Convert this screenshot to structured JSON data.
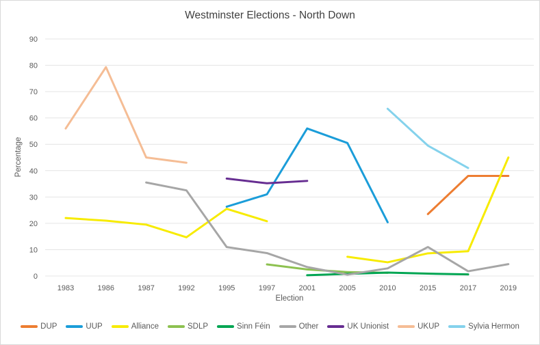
{
  "chart": {
    "title": "Westminster Elections - North Down",
    "x_axis_title": "Election",
    "y_axis_title": "Percentage"
  },
  "chart_data": {
    "type": "line",
    "title": "Westminster Elections - North Down",
    "xlabel": "Election",
    "ylabel": "Percentage",
    "ylim": [
      0,
      90
    ],
    "y_ticks": [
      0,
      10,
      20,
      30,
      40,
      50,
      60,
      70,
      80,
      90
    ],
    "grid": "horizontal",
    "legend_position": "bottom",
    "categories": [
      "1983",
      "1986",
      "1987",
      "1992",
      "1995",
      "1997",
      "2001",
      "2005",
      "2010",
      "2015",
      "2017",
      "2019"
    ],
    "series": [
      {
        "name": "DUP",
        "color": "#ED7D31",
        "values": [
          null,
          null,
          null,
          null,
          null,
          null,
          null,
          null,
          null,
          23.5,
          38,
          38
        ]
      },
      {
        "name": "UUP",
        "color": "#1B9DD9",
        "values": [
          null,
          null,
          null,
          null,
          26.3,
          31,
          56,
          50.5,
          20.4,
          null,
          null,
          null
        ]
      },
      {
        "name": "Alliance",
        "color": "#F7EB00",
        "values": [
          22,
          21,
          19.5,
          14.7,
          25.5,
          20.8,
          null,
          7.3,
          5.2,
          8.6,
          9.4,
          45
        ]
      },
      {
        "name": "SDLP",
        "color": "#8DC150",
        "values": [
          null,
          null,
          null,
          null,
          null,
          4.4,
          2.5,
          1.5,
          1.2,
          null,
          null,
          null
        ]
      },
      {
        "name": "Sinn Féin",
        "color": "#00A552",
        "values": [
          null,
          null,
          null,
          null,
          null,
          null,
          0.3,
          0.8,
          1.3,
          0.9,
          0.6,
          null
        ]
      },
      {
        "name": "Other",
        "color": "#A6A6A6",
        "values": [
          null,
          null,
          35.5,
          32.5,
          11,
          8.7,
          3.4,
          0.5,
          2.9,
          11,
          1.8,
          4.5
        ]
      },
      {
        "name": "UK Unionist",
        "color": "#662D91",
        "values": [
          null,
          null,
          null,
          null,
          37,
          35.2,
          36.1,
          null,
          null,
          null,
          null,
          null
        ]
      },
      {
        "name": "UKUP",
        "color": "#F5BD95",
        "values": [
          56,
          79.3,
          45,
          43,
          null,
          null,
          null,
          null,
          null,
          null,
          null,
          null
        ]
      },
      {
        "name": "Sylvia Hermon",
        "color": "#84D2EC",
        "values": [
          null,
          null,
          null,
          null,
          null,
          null,
          null,
          null,
          63.5,
          49.5,
          41,
          null
        ]
      }
    ]
  }
}
